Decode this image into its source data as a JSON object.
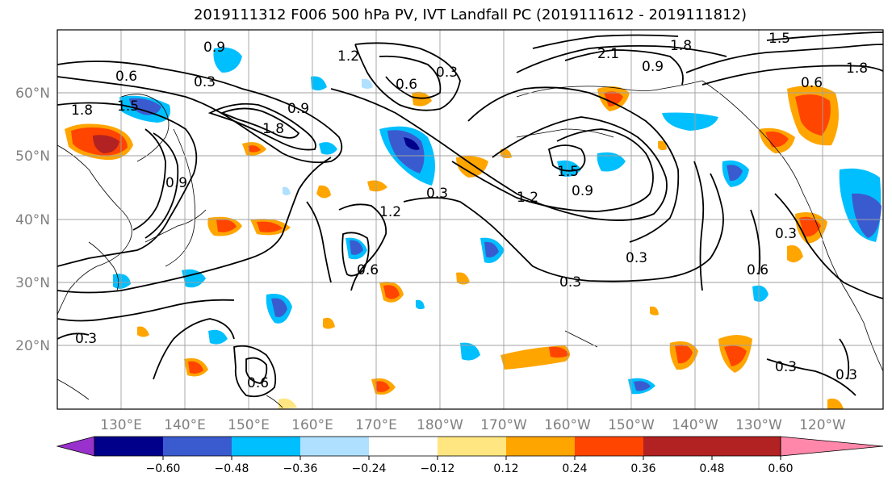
{
  "title": "2019111312 F006 500 hPa PV, IVT Landfall PC (2019111612 - 2019111812)",
  "lat_labels": [
    "60°N",
    "50°N",
    "40°N",
    "30°N",
    "20°N"
  ],
  "lon_labels": [
    "130°E",
    "140°E",
    "150°E",
    "160°E",
    "170°E",
    "180°W",
    "170°W",
    "160°W",
    "150°W",
    "140°W",
    "130°W",
    "120°W"
  ],
  "contour_labels": [
    "0.9",
    "1.2",
    "0.6",
    "0.3",
    "1.8",
    "1.5",
    "0.9",
    "1.2",
    "0.3",
    "0.6",
    "0.3",
    "1.2",
    "0.9",
    "0.9",
    "0.3",
    "0.3",
    "1.8",
    "2.1",
    "0.9",
    "1.5",
    "0.6",
    "0.3",
    "0.6",
    "0.3",
    "0.3",
    "0.3",
    "0.6",
    "1.8",
    "1.5",
    "0.6",
    "1.8"
  ],
  "colorbar": {
    "colors": [
      "#9932CC",
      "#00008B",
      "#3A5BCF",
      "#00BFFF",
      "#B0E0FF",
      "#FFFFFF",
      "#FFE680",
      "#FFA500",
      "#FF4500",
      "#B22222",
      "#FF88AA"
    ],
    "tick_labels": [
      "−0.60",
      "−0.48",
      "−0.36",
      "−0.24",
      "−0.12",
      "0.12",
      "0.24",
      "0.36",
      "0.48",
      "0.60"
    ]
  }
}
